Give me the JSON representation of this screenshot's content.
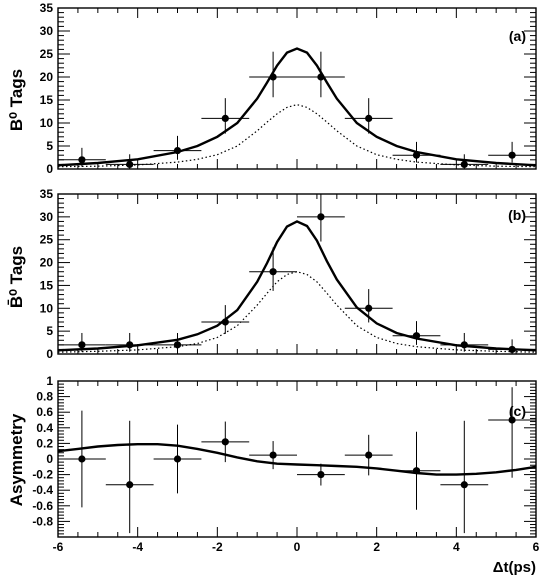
{
  "chart_data": [
    {
      "type": "scatter",
      "panel_label": "(a)",
      "ylabel": "B⁰ Tags",
      "xlim": [
        -6,
        6
      ],
      "ylim": [
        0,
        35
      ],
      "yticks": [
        0,
        5,
        10,
        15,
        20,
        25,
        30,
        35
      ],
      "xticks": [],
      "points": [
        {
          "x": -5.4,
          "y": 2,
          "xerr": 0.6,
          "yerr_lo": 1.5,
          "yerr_hi": 2.6
        },
        {
          "x": -4.2,
          "y": 1,
          "xerr": 0.6,
          "yerr_lo": 0.9,
          "yerr_hi": 2.2
        },
        {
          "x": -3.0,
          "y": 4,
          "xerr": 0.6,
          "yerr_lo": 2.0,
          "yerr_hi": 3.2
        },
        {
          "x": -1.8,
          "y": 11,
          "xerr": 0.6,
          "yerr_lo": 3.3,
          "yerr_hi": 4.4
        },
        {
          "x": -0.6,
          "y": 20,
          "xerr": 0.6,
          "yerr_lo": 4.4,
          "yerr_hi": 5.5
        },
        {
          "x": 0.6,
          "y": 20,
          "xerr": 0.6,
          "yerr_lo": 4.4,
          "yerr_hi": 5.5
        },
        {
          "x": 1.8,
          "y": 11,
          "xerr": 0.6,
          "yerr_lo": 3.3,
          "yerr_hi": 4.4
        },
        {
          "x": 3.0,
          "y": 3,
          "xerr": 0.6,
          "yerr_lo": 1.6,
          "yerr_hi": 2.9
        },
        {
          "x": 4.2,
          "y": 1,
          "xerr": 0.6,
          "yerr_lo": 0.9,
          "yerr_hi": 2.2
        },
        {
          "x": 5.4,
          "y": 3,
          "xerr": 0.6,
          "yerr_lo": 1.6,
          "yerr_hi": 2.9
        }
      ],
      "curves": [
        {
          "style": "solid",
          "x": [
            -6,
            -5,
            -4,
            -3,
            -2.5,
            -2,
            -1.5,
            -1,
            -0.75,
            -0.5,
            -0.25,
            0,
            0.25,
            0.5,
            0.75,
            1,
            1.5,
            2,
            2.5,
            3,
            4,
            5,
            6
          ],
          "y": [
            0.8,
            1.3,
            2.1,
            3.7,
            5.0,
            7.0,
            10.0,
            15.3,
            18.8,
            22.5,
            25.3,
            26.2,
            25.3,
            22.5,
            18.8,
            15.3,
            10.0,
            7.0,
            5.0,
            3.7,
            2.1,
            1.3,
            0.8
          ]
        },
        {
          "style": "dotted",
          "x": [
            -6,
            -5,
            -4,
            -3,
            -2.5,
            -2,
            -1.5,
            -1,
            -0.75,
            -0.5,
            -0.25,
            0,
            0.25,
            0.5,
            0.75,
            1,
            1.5,
            2,
            2.5,
            3,
            4,
            5,
            6
          ],
          "y": [
            0.5,
            0.6,
            0.9,
            1.5,
            2.1,
            3.1,
            5.0,
            8.3,
            10.2,
            12.0,
            13.4,
            14.0,
            13.4,
            12.0,
            10.2,
            8.3,
            5.0,
            3.1,
            2.1,
            1.5,
            0.9,
            0.6,
            0.5
          ]
        }
      ]
    },
    {
      "type": "scatter",
      "panel_label": "(b)",
      "ylabel": "B̄⁰ Tags",
      "xlim": [
        -6,
        6
      ],
      "ylim": [
        0,
        35
      ],
      "yticks": [
        0,
        5,
        10,
        15,
        20,
        25,
        30,
        35
      ],
      "xticks": [],
      "points": [
        {
          "x": -5.4,
          "y": 2,
          "xerr": 0.6,
          "yerr_lo": 1.5,
          "yerr_hi": 2.6
        },
        {
          "x": -4.2,
          "y": 2,
          "xerr": 0.6,
          "yerr_lo": 1.5,
          "yerr_hi": 2.6
        },
        {
          "x": -3.0,
          "y": 2,
          "xerr": 0.6,
          "yerr_lo": 1.5,
          "yerr_hi": 2.6
        },
        {
          "x": -1.8,
          "y": 7,
          "xerr": 0.6,
          "yerr_lo": 2.6,
          "yerr_hi": 3.7
        },
        {
          "x": -0.6,
          "y": 18,
          "xerr": 0.6,
          "yerr_lo": 4.2,
          "yerr_hi": 5.3
        },
        {
          "x": 0.6,
          "y": 30,
          "xerr": 0.6,
          "yerr_lo": 5.4,
          "yerr_hi": 6.5
        },
        {
          "x": 1.8,
          "y": 10,
          "xerr": 0.6,
          "yerr_lo": 3.1,
          "yerr_hi": 4.2
        },
        {
          "x": 3.0,
          "y": 4,
          "xerr": 0.6,
          "yerr_lo": 2.0,
          "yerr_hi": 3.2
        },
        {
          "x": 4.2,
          "y": 2,
          "xerr": 0.6,
          "yerr_lo": 1.5,
          "yerr_hi": 2.6
        },
        {
          "x": 5.4,
          "y": 1,
          "xerr": 0.6,
          "yerr_lo": 0.9,
          "yerr_hi": 2.2
        }
      ],
      "curves": [
        {
          "style": "solid",
          "x": [
            -6,
            -5,
            -4,
            -3,
            -2.5,
            -2,
            -1.5,
            -1,
            -0.75,
            -0.5,
            -0.25,
            0,
            0.25,
            0.5,
            0.75,
            1,
            1.5,
            2,
            2.5,
            3,
            4,
            5,
            6
          ],
          "y": [
            0.8,
            1.2,
            1.9,
            3.1,
            4.3,
            6.2,
            9.6,
            15.8,
            19.9,
            24.5,
            27.9,
            29.0,
            28.0,
            24.8,
            20.3,
            16.3,
            10.2,
            6.7,
            4.6,
            3.4,
            1.9,
            1.2,
            0.8
          ]
        },
        {
          "style": "dotted",
          "x": [
            -6,
            -5,
            -4,
            -3,
            -2.5,
            -2,
            -1.5,
            -1,
            -0.75,
            -0.5,
            -0.25,
            0,
            0.25,
            0.5,
            0.75,
            1,
            1.5,
            2,
            2.5,
            3,
            4,
            5,
            6
          ],
          "y": [
            0.4,
            0.6,
            0.9,
            1.6,
            2.3,
            3.6,
            6.2,
            10.7,
            13.3,
            15.8,
            17.4,
            18.0,
            17.4,
            15.8,
            13.3,
            10.7,
            6.2,
            3.6,
            2.3,
            1.6,
            0.9,
            0.6,
            0.4
          ]
        }
      ]
    },
    {
      "type": "scatter",
      "panel_label": "(c)",
      "ylabel": "Asymmetry",
      "xlabel": "Δt(ps)",
      "xlim": [
        -6,
        6
      ],
      "ylim": [
        -1,
        1
      ],
      "yticks": [
        -0.8,
        -0.6,
        -0.4,
        -0.2,
        0,
        0.2,
        0.4,
        0.6,
        0.8,
        1
      ],
      "xticks": [
        -6,
        -4,
        -2,
        0,
        2,
        4,
        6
      ],
      "points": [
        {
          "x": -5.4,
          "y": 0.0,
          "xerr": 0.6,
          "yerr_lo": 0.62,
          "yerr_hi": 0.62
        },
        {
          "x": -4.2,
          "y": -0.33,
          "xerr": 0.6,
          "yerr_lo": 0.62,
          "yerr_hi": 0.82
        },
        {
          "x": -3.0,
          "y": 0.0,
          "xerr": 0.6,
          "yerr_lo": 0.44,
          "yerr_hi": 0.44
        },
        {
          "x": -1.8,
          "y": 0.22,
          "xerr": 0.6,
          "yerr_lo": 0.26,
          "yerr_hi": 0.26
        },
        {
          "x": -0.6,
          "y": 0.05,
          "xerr": 0.6,
          "yerr_lo": 0.18,
          "yerr_hi": 0.18
        },
        {
          "x": 0.6,
          "y": -0.2,
          "xerr": 0.6,
          "yerr_lo": 0.14,
          "yerr_hi": 0.14
        },
        {
          "x": 1.8,
          "y": 0.05,
          "xerr": 0.6,
          "yerr_lo": 0.26,
          "yerr_hi": 0.26
        },
        {
          "x": 3.0,
          "y": -0.15,
          "xerr": 0.6,
          "yerr_lo": 0.5,
          "yerr_hi": 0.5
        },
        {
          "x": 4.2,
          "y": -0.33,
          "xerr": 0.6,
          "yerr_lo": 0.62,
          "yerr_hi": 0.82
        },
        {
          "x": 5.4,
          "y": 0.5,
          "xerr": 0.6,
          "yerr_lo": 0.74,
          "yerr_hi": 0.42
        }
      ],
      "curves": [
        {
          "style": "solid",
          "x": [
            -6,
            -5.5,
            -5,
            -4.5,
            -4,
            -3.5,
            -3,
            -2.5,
            -2,
            -1.5,
            -1,
            -0.5,
            0,
            0.5,
            1,
            1.5,
            2,
            2.5,
            3,
            3.5,
            4,
            4.5,
            5,
            5.5,
            6
          ],
          "y": [
            0.1,
            0.13,
            0.16,
            0.18,
            0.19,
            0.19,
            0.17,
            0.13,
            0.08,
            0.02,
            -0.03,
            -0.06,
            -0.07,
            -0.08,
            -0.09,
            -0.1,
            -0.12,
            -0.15,
            -0.18,
            -0.2,
            -0.2,
            -0.19,
            -0.17,
            -0.14,
            -0.1
          ]
        }
      ]
    }
  ]
}
